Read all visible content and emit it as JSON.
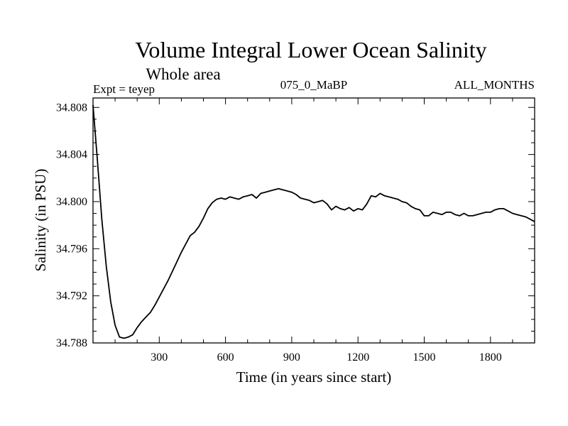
{
  "chart_data": {
    "type": "line",
    "title": "Volume Integral Lower Ocean Salinity",
    "subtitle": "Whole area",
    "header_left": "Expt = teyep",
    "header_center": "075_0_MaBP",
    "header_right": "ALL_MONTHS",
    "xlabel": "Time (in years since start)",
    "ylabel": "Salinity (in PSU)",
    "xlim": [
      0,
      2000
    ],
    "ylim": [
      34.788,
      34.8088
    ],
    "x_ticks_labeled": [
      300,
      600,
      900,
      1200,
      1500,
      1800
    ],
    "x_tick_labels": [
      "300",
      "600",
      "900",
      "1200",
      "1500",
      "1800"
    ],
    "x_minor_step": 100,
    "y_ticks_labeled": [
      34.788,
      34.792,
      34.796,
      34.8,
      34.804,
      34.808
    ],
    "y_tick_labels": [
      "34.788",
      "34.792",
      "34.796",
      "34.800",
      "34.804",
      "34.808"
    ],
    "y_minor_step": 0.001,
    "grid": false,
    "series": [
      {
        "name": "Salinity",
        "color": "#000000",
        "x": [
          0,
          20,
          40,
          60,
          80,
          100,
          120,
          140,
          160,
          180,
          200,
          220,
          240,
          260,
          280,
          300,
          320,
          340,
          360,
          380,
          400,
          420,
          440,
          460,
          480,
          500,
          520,
          540,
          560,
          580,
          600,
          620,
          640,
          660,
          680,
          700,
          720,
          740,
          760,
          780,
          800,
          820,
          840,
          860,
          880,
          900,
          920,
          940,
          960,
          980,
          1000,
          1020,
          1040,
          1060,
          1080,
          1100,
          1120,
          1140,
          1160,
          1180,
          1200,
          1220,
          1240,
          1260,
          1280,
          1300,
          1320,
          1340,
          1360,
          1380,
          1400,
          1420,
          1440,
          1460,
          1480,
          1500,
          1520,
          1540,
          1560,
          1580,
          1600,
          1620,
          1640,
          1660,
          1680,
          1700,
          1720,
          1740,
          1760,
          1780,
          1800,
          1820,
          1840,
          1860,
          1880,
          1900,
          1920,
          1940,
          1960,
          1980,
          2000
        ],
        "values": [
          34.8082,
          34.8035,
          34.7985,
          34.7945,
          34.7915,
          34.7895,
          34.7885,
          34.7884,
          34.7885,
          34.7887,
          34.7893,
          34.7898,
          34.7902,
          34.7906,
          34.7912,
          34.7919,
          34.7926,
          34.7933,
          34.7941,
          34.7949,
          34.7957,
          34.7964,
          34.7971,
          34.7974,
          34.7979,
          34.7986,
          34.7994,
          34.7999,
          34.8002,
          34.8003,
          34.8002,
          34.8004,
          34.8003,
          34.8002,
          34.8004,
          34.8005,
          34.8006,
          34.8003,
          34.8007,
          34.8008,
          34.8009,
          34.801,
          34.8011,
          34.801,
          34.8009,
          34.8008,
          34.8006,
          34.8003,
          34.8002,
          34.8001,
          34.7999,
          34.8,
          34.8001,
          34.7998,
          34.7993,
          34.7996,
          34.7994,
          34.7993,
          34.7995,
          34.7992,
          34.7994,
          34.7993,
          34.7998,
          34.8005,
          34.8004,
          34.8007,
          34.8005,
          34.8004,
          34.8003,
          34.8002,
          34.8,
          34.7999,
          34.7996,
          34.7994,
          34.7993,
          34.7988,
          34.7988,
          34.7991,
          34.799,
          34.7989,
          34.7991,
          34.7991,
          34.7989,
          34.7988,
          34.799,
          34.7988,
          34.7988,
          34.7989,
          34.799,
          34.7991,
          34.7991,
          34.7993,
          34.7994,
          34.7994,
          34.7992,
          34.799,
          34.7989,
          34.7988,
          34.7987,
          34.7985,
          34.7983
        ]
      }
    ]
  }
}
